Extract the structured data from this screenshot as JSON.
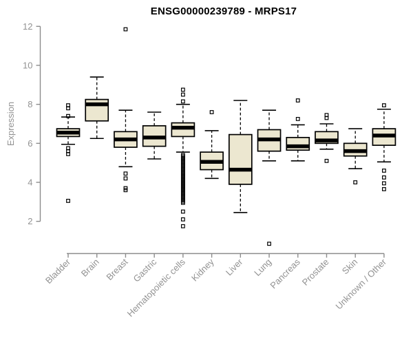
{
  "chart_data": {
    "type": "boxplot",
    "title": "ENSG00000239789 - MRPS17",
    "ylabel": "Expression",
    "ylim": [
      2,
      12
    ],
    "yticks": [
      2,
      4,
      6,
      8,
      10,
      12
    ],
    "grid": false,
    "legend": null,
    "categories": [
      "Bladder",
      "Brain",
      "Breast",
      "Gastric",
      "Hematopoietic cells",
      "Kidney",
      "Liver",
      "Lung",
      "Pancreas",
      "Prostate",
      "Skin",
      "Unknown / Other"
    ],
    "boxes": [
      {
        "category": "Bladder",
        "whisker_low": 5.95,
        "q1": 6.35,
        "median": 6.55,
        "q3": 6.75,
        "whisker_high": 7.35,
        "outliers": [
          7.95,
          7.8,
          7.4,
          5.75,
          5.6,
          5.45,
          3.05
        ]
      },
      {
        "category": "Brain",
        "whisker_low": 6.25,
        "q1": 7.15,
        "median": 8.0,
        "q3": 8.25,
        "whisker_high": 9.4,
        "outliers": []
      },
      {
        "category": "Breast",
        "whisker_low": 4.8,
        "q1": 5.8,
        "median": 6.2,
        "q3": 6.6,
        "whisker_high": 7.7,
        "outliers": [
          11.85,
          4.45,
          4.2,
          3.7,
          3.6
        ]
      },
      {
        "category": "Gastric",
        "whisker_low": 5.2,
        "q1": 5.85,
        "median": 6.3,
        "q3": 6.9,
        "whisker_high": 7.6,
        "outliers": []
      },
      {
        "category": "Hematopoietic cells",
        "whisker_low": 5.55,
        "q1": 6.35,
        "median": 6.8,
        "q3": 7.05,
        "whisker_high": 8.0,
        "outliers": [
          8.75,
          8.5,
          8.15,
          5.4,
          5.33,
          5.26,
          5.19,
          5.12,
          5.05,
          4.98,
          4.91,
          4.84,
          4.77,
          4.7,
          4.63,
          4.56,
          4.49,
          4.42,
          4.35,
          4.28,
          4.21,
          4.14,
          4.07,
          4.0,
          3.93,
          3.86,
          3.79,
          3.72,
          3.65,
          3.58,
          3.51,
          3.44,
          3.37,
          3.3,
          3.23,
          3.16,
          3.09,
          3.02,
          2.95,
          2.5,
          2.1,
          1.75
        ]
      },
      {
        "category": "Kidney",
        "whisker_low": 4.2,
        "q1": 4.65,
        "median": 5.05,
        "q3": 5.55,
        "whisker_high": 6.65,
        "outliers": [
          7.6
        ]
      },
      {
        "category": "Liver",
        "whisker_low": 2.45,
        "q1": 3.9,
        "median": 4.65,
        "q3": 6.45,
        "whisker_high": 8.2,
        "outliers": []
      },
      {
        "category": "Lung",
        "whisker_low": 5.1,
        "q1": 5.6,
        "median": 6.2,
        "q3": 6.7,
        "whisker_high": 7.7,
        "outliers": [
          0.85
        ]
      },
      {
        "category": "Pancreas",
        "whisker_low": 5.1,
        "q1": 5.65,
        "median": 5.85,
        "q3": 6.3,
        "whisker_high": 6.95,
        "outliers": [
          8.2,
          7.25
        ]
      },
      {
        "category": "Prostate",
        "whisker_low": 5.7,
        "q1": 6.0,
        "median": 6.15,
        "q3": 6.6,
        "whisker_high": 7.0,
        "outliers": [
          7.45,
          7.3,
          5.1
        ]
      },
      {
        "category": "Skin",
        "whisker_low": 4.7,
        "q1": 5.35,
        "median": 5.6,
        "q3": 6.0,
        "whisker_high": 6.75,
        "outliers": [
          4.0
        ]
      },
      {
        "category": "Unknown / Other",
        "whisker_low": 5.05,
        "q1": 5.9,
        "median": 6.4,
        "q3": 6.75,
        "whisker_high": 7.75,
        "outliers": [
          7.95,
          4.6,
          4.25,
          3.95,
          3.65
        ]
      }
    ],
    "colors": {
      "box_fill": "#ece7d0",
      "box_border": "#000000",
      "median": "#000000",
      "axis_line": "#8c8c8c",
      "tick_label": "#929292",
      "title": "#000000",
      "background": "#ffffff"
    }
  }
}
